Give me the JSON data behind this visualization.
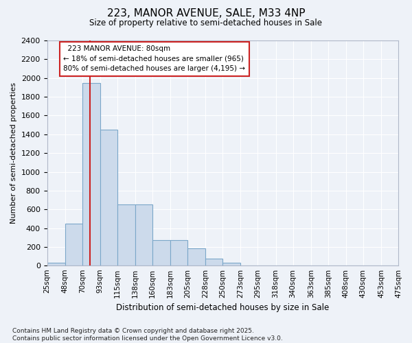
{
  "title": "223, MANOR AVENUE, SALE, M33 4NP",
  "subtitle": "Size of property relative to semi-detached houses in Sale",
  "xlabel": "Distribution of semi-detached houses by size in Sale",
  "ylabel": "Number of semi-detached properties",
  "footnote": "Contains HM Land Registry data © Crown copyright and database right 2025.\nContains public sector information licensed under the Open Government Licence v3.0.",
  "property_size": 80,
  "property_label": "223 MANOR AVENUE: 80sqm",
  "smaller_pct": 18,
  "smaller_count": 965,
  "larger_pct": 80,
  "larger_count": 4195,
  "bar_color": "#ccdaeb",
  "bar_edge_color": "#7ba7c9",
  "vline_color": "#cc2222",
  "annotation_box_color": "#cc2222",
  "background_color": "#eef2f8",
  "grid_color": "#ffffff",
  "bins": [
    25,
    48,
    70,
    93,
    115,
    138,
    160,
    183,
    205,
    228,
    250,
    273,
    295,
    318,
    340,
    363,
    385,
    408,
    430,
    453,
    475
  ],
  "counts": [
    30,
    450,
    1950,
    1450,
    650,
    650,
    270,
    270,
    185,
    75,
    30,
    5,
    5,
    0,
    0,
    0,
    0,
    0,
    0,
    0
  ],
  "ylim_max": 2400,
  "ytick_step": 200,
  "figsize": [
    6.0,
    5.0
  ],
  "dpi": 100
}
